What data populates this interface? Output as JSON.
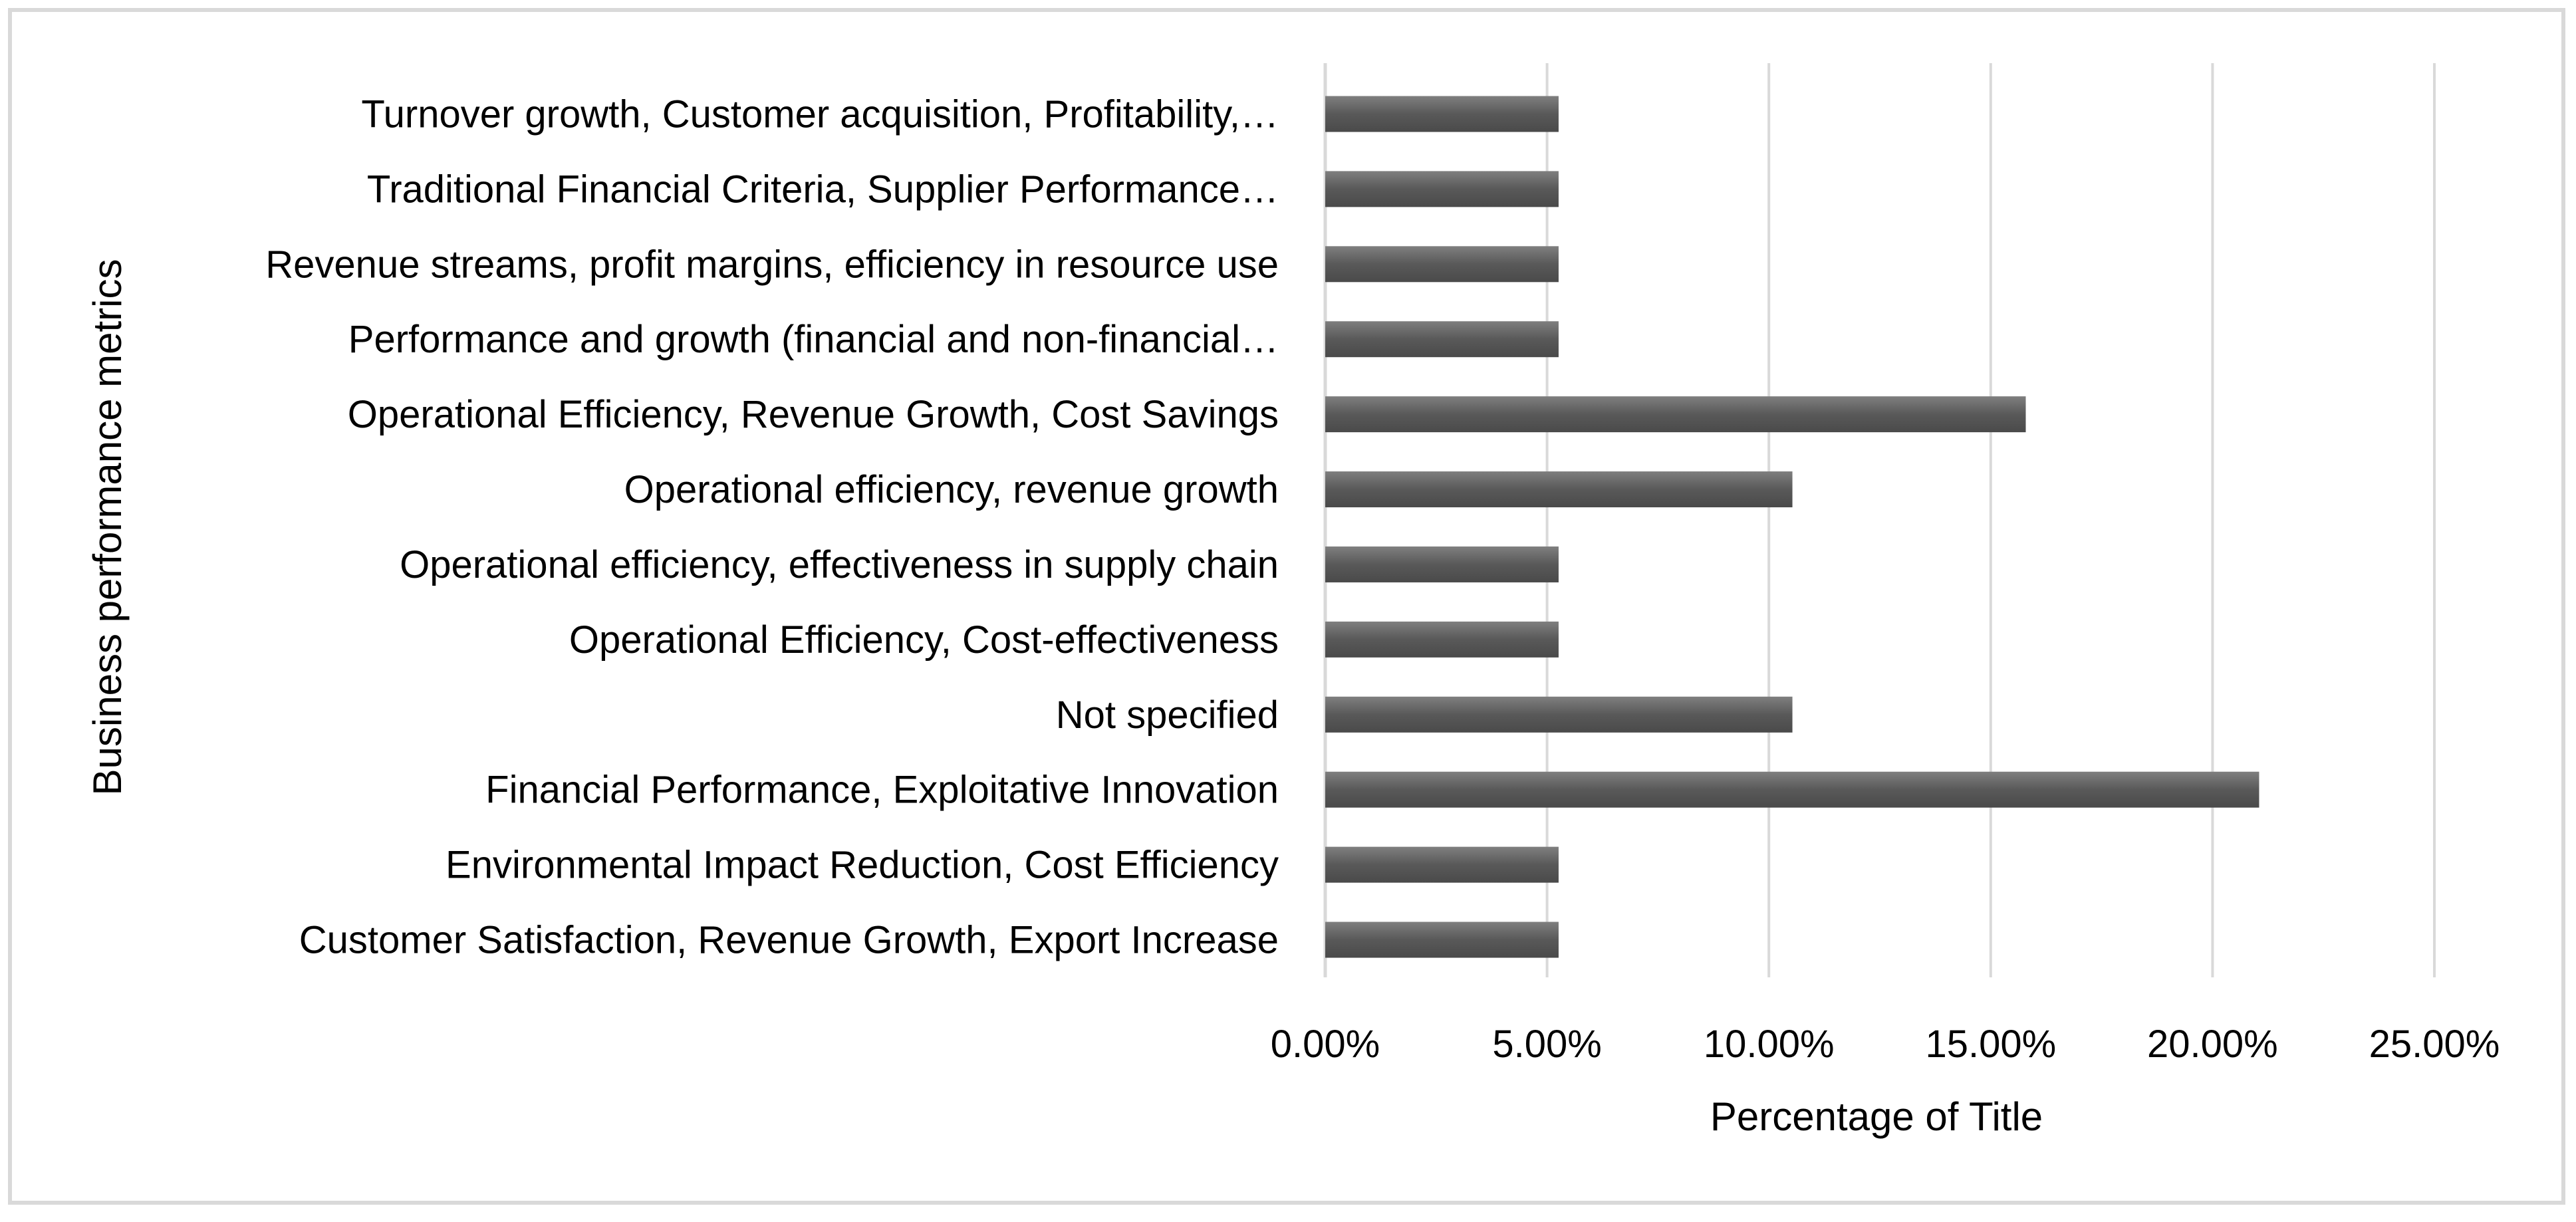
{
  "chart_data": {
    "type": "bar",
    "orientation": "horizontal",
    "categories": [
      "Turnover growth, Customer acquisition, Profitability,…",
      "Traditional Financial Criteria, Supplier Performance…",
      "Revenue streams, profit margins, efficiency in resource use",
      "Performance and growth (financial and non-financial…",
      "Operational Efficiency, Revenue Growth, Cost Savings",
      "Operational efficiency, revenue growth",
      "Operational efficiency, effectiveness in supply chain",
      "Operational Efficiency, Cost-effectiveness",
      "Not specified",
      "Financial Performance, Exploitative Innovation",
      "Environmental Impact Reduction, Cost Efficiency",
      "Customer Satisfaction, Revenue Growth, Export Increase"
    ],
    "values": [
      5.26,
      5.26,
      5.26,
      5.26,
      15.79,
      10.53,
      5.26,
      5.26,
      10.53,
      21.05,
      5.26,
      5.26
    ],
    "xlabel": "Percentage of Title",
    "ylabel": "Business performance metrics",
    "xlim": [
      0,
      25
    ],
    "xticks": [
      "0.00%",
      "5.00%",
      "10.00%",
      "15.00%",
      "20.00%",
      "25.00%"
    ],
    "grid": true,
    "legend": "none",
    "colors": {
      "bar": "#595959",
      "bar_highlight": "#7f7f7f",
      "grid": "#d9d9d9",
      "frame": "#d9d9d9"
    }
  }
}
